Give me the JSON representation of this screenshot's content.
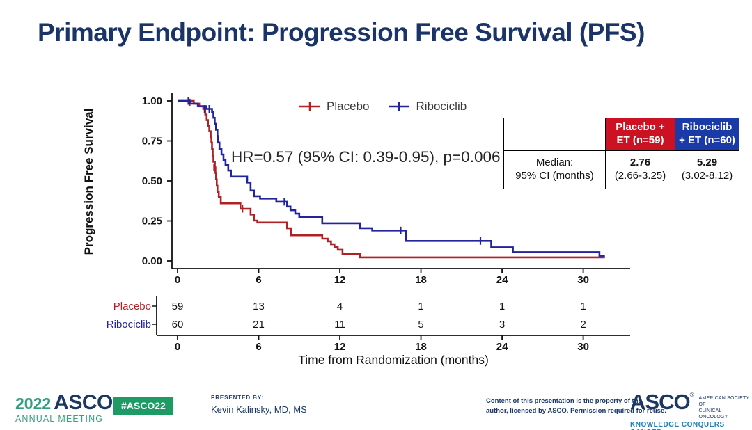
{
  "slide_title": "Primary Endpoint: Progression Free Survival (PFS)",
  "stats_table": {
    "row_label_line1": "Median:",
    "row_label_line2": "95% CI (months)",
    "placebo_header_line1": "Placebo +",
    "placebo_header_line2": "ET (n=59)",
    "ribociclib_header_line1": "Ribociclib",
    "ribociclib_header_line2": "+ ET (n=60)",
    "placebo_median": "2.76",
    "placebo_ci": "(2.66-3.25)",
    "ribociclib_median": "5.29",
    "ribociclib_ci": "(3.02-8.12)",
    "header_red": "#cc1122",
    "header_blue": "#1a3aa8"
  },
  "chart_data": {
    "type": "line",
    "subtype": "kaplan-meier-step",
    "annotation": "HR=0.57 (95% CI: 0.39-0.95), p=0.006",
    "ylabel": "Progression Free Survival",
    "xlabel": "Time from Randomization (months)",
    "x_ticks": [
      0,
      6,
      12,
      18,
      24,
      30
    ],
    "y_tick_labels": [
      "1.00",
      "0.75",
      "0.50",
      "0.25",
      "0.00"
    ],
    "xlim": [
      0,
      33.5
    ],
    "ylim": [
      0,
      1
    ],
    "grid": false,
    "legend_position": "top-center",
    "legend": [
      {
        "label": "Placebo",
        "color": "#b02126"
      },
      {
        "label": "Ribociclib",
        "color": "#22249c"
      }
    ],
    "series": [
      {
        "name": "Placebo",
        "color": "#b02126",
        "end_month": 31.6,
        "steps": [
          [
            0,
            1.0
          ],
          [
            1.2,
            0.983
          ],
          [
            1.6,
            0.966
          ],
          [
            1.9,
            0.95
          ],
          [
            2.05,
            0.915
          ],
          [
            2.15,
            0.88
          ],
          [
            2.25,
            0.845
          ],
          [
            2.35,
            0.81
          ],
          [
            2.45,
            0.775
          ],
          [
            2.5,
            0.74
          ],
          [
            2.55,
            0.7
          ],
          [
            2.6,
            0.655
          ],
          [
            2.65,
            0.62
          ],
          [
            2.76,
            0.585
          ],
          [
            2.8,
            0.55
          ],
          [
            2.85,
            0.51
          ],
          [
            2.9,
            0.47
          ],
          [
            2.95,
            0.43
          ],
          [
            3.05,
            0.4
          ],
          [
            3.2,
            0.36
          ],
          [
            4.65,
            0.326
          ],
          [
            5.4,
            0.29
          ],
          [
            5.65,
            0.252
          ],
          [
            5.9,
            0.24
          ],
          [
            8.1,
            0.204
          ],
          [
            8.4,
            0.16
          ],
          [
            10.7,
            0.139
          ],
          [
            11.1,
            0.122
          ],
          [
            11.35,
            0.104
          ],
          [
            11.6,
            0.087
          ],
          [
            11.85,
            0.07
          ],
          [
            12.2,
            0.043
          ],
          [
            13.5,
            0.022
          ]
        ],
        "censor_marks": [
          [
            0.9,
            0.99
          ],
          [
            2.7,
            0.585
          ],
          [
            4.8,
            0.326
          ]
        ]
      },
      {
        "name": "Ribociclib",
        "color": "#22249c",
        "end_month": 31.6,
        "steps": [
          [
            0,
            1.0
          ],
          [
            0.9,
            0.983
          ],
          [
            1.5,
            0.967
          ],
          [
            2.1,
            0.95
          ],
          [
            2.55,
            0.93
          ],
          [
            2.65,
            0.895
          ],
          [
            2.75,
            0.857
          ],
          [
            2.85,
            0.82
          ],
          [
            2.95,
            0.78
          ],
          [
            3.0,
            0.74
          ],
          [
            3.1,
            0.7
          ],
          [
            3.25,
            0.665
          ],
          [
            3.4,
            0.63
          ],
          [
            3.55,
            0.6
          ],
          [
            3.75,
            0.565
          ],
          [
            3.95,
            0.527
          ],
          [
            5.15,
            0.49
          ],
          [
            5.4,
            0.44
          ],
          [
            5.65,
            0.405
          ],
          [
            6.1,
            0.39
          ],
          [
            7.3,
            0.37
          ],
          [
            8.1,
            0.34
          ],
          [
            8.35,
            0.317
          ],
          [
            8.7,
            0.295
          ],
          [
            9.0,
            0.274
          ],
          [
            10.7,
            0.235
          ],
          [
            13.5,
            0.205
          ],
          [
            14.4,
            0.19
          ],
          [
            16.9,
            0.125
          ],
          [
            23.2,
            0.085
          ],
          [
            24.8,
            0.055
          ],
          [
            31.2,
            0.032
          ]
        ],
        "censor_marks": [
          [
            0.8,
            1.0
          ],
          [
            2.0,
            0.95
          ],
          [
            2.35,
            0.95
          ],
          [
            7.9,
            0.37
          ],
          [
            16.5,
            0.19
          ],
          [
            22.4,
            0.125
          ]
        ]
      }
    ],
    "at_risk": {
      "times": [
        0,
        6,
        12,
        18,
        24,
        30
      ],
      "rows": [
        {
          "label": "Placebo",
          "color": "#b02126",
          "counts": [
            59,
            13,
            4,
            1,
            1,
            1
          ]
        },
        {
          "label": "Ribociclib",
          "color": "#22249c",
          "counts": [
            60,
            21,
            11,
            5,
            3,
            2
          ]
        }
      ]
    }
  },
  "footer": {
    "year": "2022",
    "org": "ASCO",
    "meeting": "ANNUAL MEETING",
    "hashtag": "#ASCO22",
    "presented_by_label": "PRESENTED BY:",
    "presenter": "Kevin Kalinsky, MD, MS",
    "disclaimer_line1": "Content of this presentation is the property of the",
    "disclaimer_line2": "author, licensed by ASCO. Permission required for reuse.",
    "asco_logo_text": "ASCO",
    "asco_society_line1": "AMERICAN SOCIETY OF",
    "asco_society_line2": "CLINICAL ONCOLOGY",
    "asco_tagline": "KNOWLEDGE CONQUERS CANCER",
    "green": "#1e9b64",
    "navy": "#1b3764",
    "teal": "#2080b8"
  }
}
